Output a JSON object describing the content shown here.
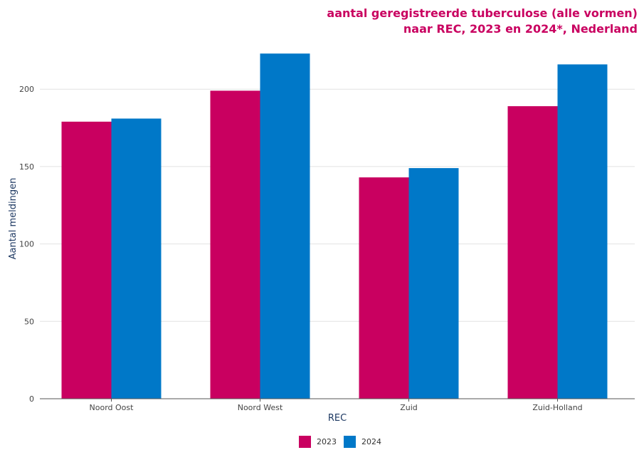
{
  "title_line1": "aantal geregistreerde tuberculose (alle vormen)",
  "title_line2": "naar REC, 2023 en 2024*, Nederland",
  "colors": {
    "s2023": "#c90060",
    "s2024": "#0078c8",
    "grid": "#e2e2e2",
    "axis": "#555555",
    "axis_title": "#1f3a63"
  },
  "chart_data": {
    "type": "bar",
    "categories": [
      "Noord Oost",
      "Noord West",
      "Zuid",
      "Zuid-Holland"
    ],
    "series": [
      {
        "name": "2023",
        "values": [
          179,
          199,
          143,
          189
        ]
      },
      {
        "name": "2024",
        "values": [
          181,
          223,
          149,
          216
        ]
      }
    ],
    "xlabel": "REC",
    "ylabel": "Aantal meldingen",
    "yticks": [
      0,
      50,
      100,
      150,
      200
    ],
    "ylim": [
      0,
      230
    ],
    "grid": true,
    "legend": "bottom"
  }
}
